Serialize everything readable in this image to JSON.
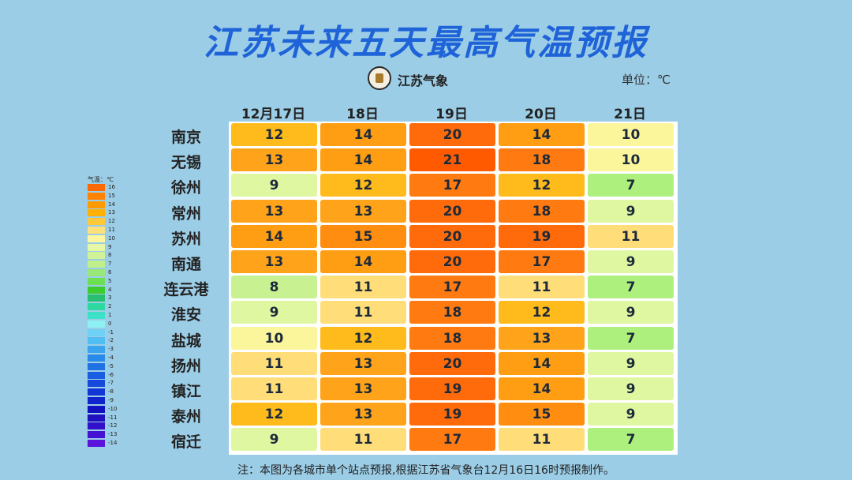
{
  "title": "江苏未来五天最高气温预报",
  "logo_text": "江苏气象",
  "unit": "单位：℃",
  "note": "注：本图为各城市单个站点预报,根据江苏省气象台12月16日16时预报制作。",
  "legend": {
    "title": "气温：℃",
    "labels": [
      "16",
      "15",
      "14",
      "13",
      "12",
      "11",
      "10",
      "9",
      "8",
      "7",
      "6",
      "5",
      "4",
      "3",
      "2",
      "1",
      "0",
      "-1",
      "-2",
      "-3",
      "-4",
      "-5",
      "-6",
      "-7",
      "-8",
      "-9",
      "-10",
      "-11",
      "-12",
      "-13",
      "-14"
    ],
    "colors": [
      "#ff6a00",
      "#ff8200",
      "#ff9a00",
      "#ffb000",
      "#ffc83a",
      "#ffe07a",
      "#fdf7a0",
      "#e6f7a6",
      "#d2f29a",
      "#bff08c",
      "#9ae87a",
      "#6ce052",
      "#3ccc2e",
      "#28c070",
      "#2ed8a0",
      "#3ee0c8",
      "#8ef0f2",
      "#6fd2f5",
      "#50bef2",
      "#3aa4ee",
      "#2a8ae9",
      "#1f72e2",
      "#1a5de0",
      "#1648dc",
      "#1236d6",
      "#1024cc",
      "#1212c2",
      "#2010be",
      "#3010c8",
      "#4412d2",
      "#5a14dc"
    ]
  },
  "chart_data": {
    "type": "table",
    "title": "江苏未来五天最高气温预报",
    "unit": "℃",
    "columns": [
      "12月17日",
      "18日",
      "19日",
      "20日",
      "21日"
    ],
    "cities": [
      "南京",
      "无锡",
      "徐州",
      "常州",
      "苏州",
      "南通",
      "连云港",
      "淮安",
      "盐城",
      "扬州",
      "镇江",
      "泰州",
      "宿迁"
    ],
    "values": [
      [
        12,
        14,
        20,
        14,
        10
      ],
      [
        13,
        14,
        21,
        18,
        10
      ],
      [
        9,
        12,
        17,
        12,
        7
      ],
      [
        13,
        13,
        20,
        18,
        9
      ],
      [
        14,
        15,
        20,
        19,
        11
      ],
      [
        13,
        14,
        20,
        17,
        9
      ],
      [
        8,
        11,
        17,
        11,
        7
      ],
      [
        9,
        11,
        18,
        12,
        9
      ],
      [
        10,
        12,
        18,
        13,
        7
      ],
      [
        11,
        13,
        20,
        14,
        9
      ],
      [
        11,
        13,
        19,
        14,
        9
      ],
      [
        12,
        13,
        19,
        15,
        9
      ],
      [
        9,
        11,
        17,
        11,
        7
      ]
    ]
  }
}
